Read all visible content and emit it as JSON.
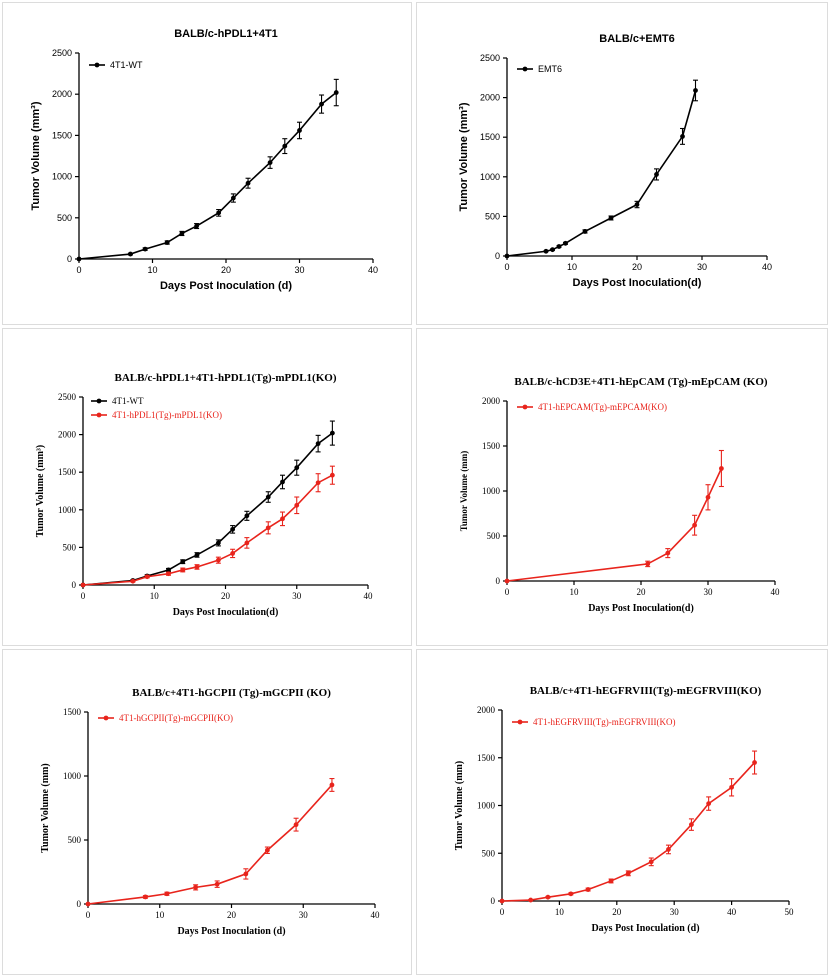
{
  "chart_data": [
    {
      "type": "line",
      "title": "BALB/c-hPDL1+4T1",
      "xlabel": "Days Post Inoculation (d)",
      "ylabel": "Tumor Volume (mm³)",
      "xlim": [
        0,
        40
      ],
      "ylim": [
        0,
        2500
      ],
      "xticks": [
        0,
        10,
        20,
        30,
        40
      ],
      "yticks": [
        0,
        500,
        1000,
        1500,
        2000,
        2500
      ],
      "legend_position": "top-left",
      "grid": false,
      "series": [
        {
          "name": "4T1-WT",
          "color": "#000000",
          "x": [
            0,
            7,
            9,
            12,
            14,
            16,
            19,
            21,
            23,
            26,
            28,
            30,
            33,
            35
          ],
          "y": [
            0,
            60,
            120,
            200,
            310,
            400,
            560,
            740,
            920,
            1170,
            1370,
            1560,
            1880,
            2020
          ],
          "err": [
            0,
            10,
            15,
            20,
            25,
            30,
            40,
            50,
            60,
            70,
            90,
            100,
            110,
            160
          ]
        }
      ]
    },
    {
      "type": "line",
      "title": "BALB/c+EMT6",
      "xlabel": "Days Post Inoculation(d)",
      "ylabel": "Tumor Volume (mm³)",
      "xlim": [
        0,
        40
      ],
      "ylim": [
        0,
        2500
      ],
      "xticks": [
        0,
        10,
        20,
        30,
        40
      ],
      "yticks": [
        0,
        500,
        1000,
        1500,
        2000,
        2500
      ],
      "legend_position": "top-left",
      "grid": false,
      "series": [
        {
          "name": "EMT6",
          "color": "#000000",
          "x": [
            0,
            6,
            7,
            8,
            9,
            12,
            16,
            20,
            23,
            27,
            29
          ],
          "y": [
            0,
            60,
            80,
            120,
            160,
            310,
            480,
            650,
            1030,
            1510,
            2090
          ],
          "err": [
            0,
            5,
            8,
            10,
            12,
            20,
            25,
            40,
            70,
            100,
            130
          ]
        }
      ]
    },
    {
      "type": "line",
      "title": "BALB/c-hPDL1+4T1-hPDL1(Tg)-mPDL1(KO)",
      "xlabel": "Days Post Inoculation(d)",
      "ylabel": "Tumor Volume (mm³)",
      "xlim": [
        0,
        40
      ],
      "ylim": [
        0,
        2500
      ],
      "xticks": [
        0,
        10,
        20,
        30,
        40
      ],
      "yticks": [
        0,
        500,
        1000,
        1500,
        2000,
        2500
      ],
      "legend_position": "top-left",
      "grid": false,
      "series": [
        {
          "name": "4T1-WT",
          "color": "#000000",
          "x": [
            0,
            7,
            9,
            12,
            14,
            16,
            19,
            21,
            23,
            26,
            28,
            30,
            33,
            35
          ],
          "y": [
            0,
            60,
            120,
            200,
            310,
            400,
            560,
            740,
            920,
            1170,
            1370,
            1560,
            1880,
            2020
          ],
          "err": [
            0,
            10,
            15,
            20,
            25,
            30,
            40,
            50,
            60,
            70,
            90,
            100,
            110,
            160
          ]
        },
        {
          "name": "4T1-hPDL1(Tg)-mPDL1(KO)",
          "color": "#e8241c",
          "x": [
            0,
            7,
            9,
            12,
            14,
            16,
            19,
            21,
            23,
            26,
            28,
            30,
            33,
            35
          ],
          "y": [
            0,
            50,
            110,
            150,
            200,
            240,
            330,
            420,
            560,
            760,
            880,
            1060,
            1360,
            1460
          ],
          "err": [
            0,
            10,
            15,
            20,
            25,
            30,
            40,
            55,
            70,
            80,
            90,
            110,
            120,
            120
          ]
        }
      ]
    },
    {
      "type": "line",
      "title": "BALB/c-hCD3E+4T1-hEpCAM (Tg)-mEpCAM (KO)",
      "xlabel": "Days Post Inoculation(d)",
      "ylabel": "Tumor Volume (mm)",
      "xlim": [
        0,
        40
      ],
      "ylim": [
        0,
        2000
      ],
      "xticks": [
        0,
        10,
        20,
        30,
        40
      ],
      "yticks": [
        0,
        500,
        1000,
        1500,
        2000
      ],
      "legend_position": "top-left",
      "grid": false,
      "series": [
        {
          "name": "4T1-hEPCAM(Tg)-mEPCAM(KO)",
          "color": "#e8241c",
          "x": [
            0,
            21,
            24,
            28,
            30,
            32
          ],
          "y": [
            0,
            190,
            310,
            620,
            930,
            1250
          ],
          "err": [
            0,
            30,
            50,
            110,
            140,
            200
          ]
        }
      ]
    },
    {
      "type": "line",
      "title": "BALB/c+4T1-hGCPII (Tg)-mGCPII (KO)",
      "xlabel": "Days Post  Inoculation (d)",
      "ylabel": "Tumor Volume (mm)",
      "xlim": [
        0,
        40
      ],
      "ylim": [
        0,
        1500
      ],
      "xticks": [
        0,
        10,
        20,
        30,
        40
      ],
      "yticks": [
        0,
        500,
        1000,
        1500
      ],
      "legend_position": "top-left",
      "grid": false,
      "series": [
        {
          "name": "4T1-hGCPII(Tg)-mGCPII(KO)",
          "color": "#e8241c",
          "x": [
            0,
            8,
            11,
            15,
            18,
            22,
            25,
            29,
            34
          ],
          "y": [
            0,
            55,
            80,
            130,
            155,
            235,
            420,
            620,
            930
          ],
          "err": [
            0,
            10,
            12,
            20,
            25,
            40,
            25,
            50,
            50
          ]
        }
      ]
    },
    {
      "type": "line",
      "title": "BALB/c+4T1-hEGFRVIII(Tg)-mEGFRVIII(KO)",
      "xlabel": "Days Post Inoculation (d)",
      "ylabel": "Tumor Volume (mm)",
      "xlim": [
        0,
        50
      ],
      "ylim": [
        0,
        2000
      ],
      "xticks": [
        0,
        10,
        20,
        30,
        40,
        50
      ],
      "yticks": [
        0,
        500,
        1000,
        1500,
        2000
      ],
      "legend_position": "top-left",
      "grid": false,
      "series": [
        {
          "name": "4T1-hEGFRVIII(Tg)-mEGFRVIII(KO)",
          "color": "#e8241c",
          "x": [
            0,
            5,
            8,
            12,
            15,
            19,
            22,
            26,
            29,
            33,
            36,
            40,
            44
          ],
          "y": [
            0,
            10,
            40,
            75,
            120,
            210,
            290,
            410,
            540,
            800,
            1020,
            1190,
            1450
          ],
          "err": [
            0,
            5,
            8,
            10,
            15,
            20,
            25,
            40,
            45,
            60,
            70,
            90,
            120
          ]
        }
      ]
    }
  ]
}
